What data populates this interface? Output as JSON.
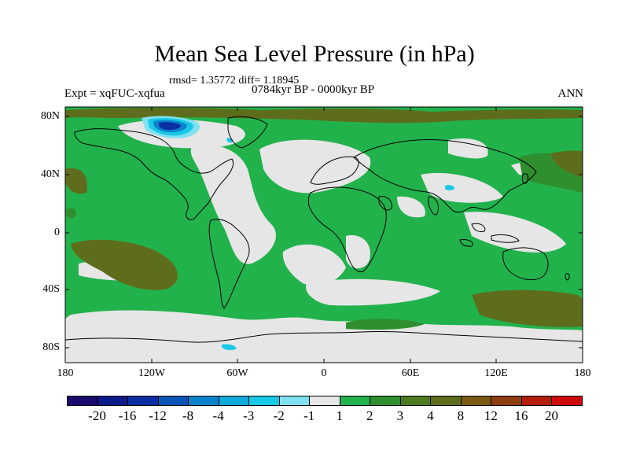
{
  "title": "Mean Sea Level Pressure (in hPa)",
  "stats": "rmsd= 1.35772 diff= 1.18945",
  "period": "0784kyr BP - 0000kyr BP",
  "experiment": "Expt = xqFUC-xqfua",
  "season": "ANN",
  "y_axis": {
    "ticks": [
      "80N",
      "40N",
      "0",
      "40S",
      "80S"
    ]
  },
  "x_axis": {
    "ticks": [
      "180",
      "120W",
      "60W",
      "0",
      "60E",
      "120E",
      "180"
    ]
  },
  "colorbar": {
    "labels": [
      "-20",
      "-16",
      "-12",
      "-8",
      "-4",
      "-3",
      "-2",
      "-1",
      "1",
      "2",
      "3",
      "4",
      "8",
      "12",
      "16",
      "20"
    ],
    "colors": [
      "#1b0a6e",
      "#0d1a8a",
      "#0a2fa0",
      "#0a55b5",
      "#0a82cc",
      "#11a8dc",
      "#18c8e6",
      "#7fe0f0",
      "#e6e6e6",
      "#22b24c",
      "#2f8f2f",
      "#4c7a20",
      "#5e6d1b",
      "#7a5a12",
      "#8f3e10",
      "#b21e0c",
      "#cc0a0a"
    ]
  },
  "chart_data": {
    "type": "filled-contour-map",
    "variable": "Mean Sea Level Pressure difference",
    "units": "hPa",
    "levels": [
      -20,
      -16,
      -12,
      -8,
      -4,
      -3,
      -2,
      -1,
      1,
      2,
      3,
      4,
      8,
      12,
      16,
      20
    ],
    "lon_range": [
      -180,
      180
    ],
    "lat_range": [
      -90,
      90
    ],
    "rmsd": 1.35772,
    "mean_diff": 1.18945
  }
}
